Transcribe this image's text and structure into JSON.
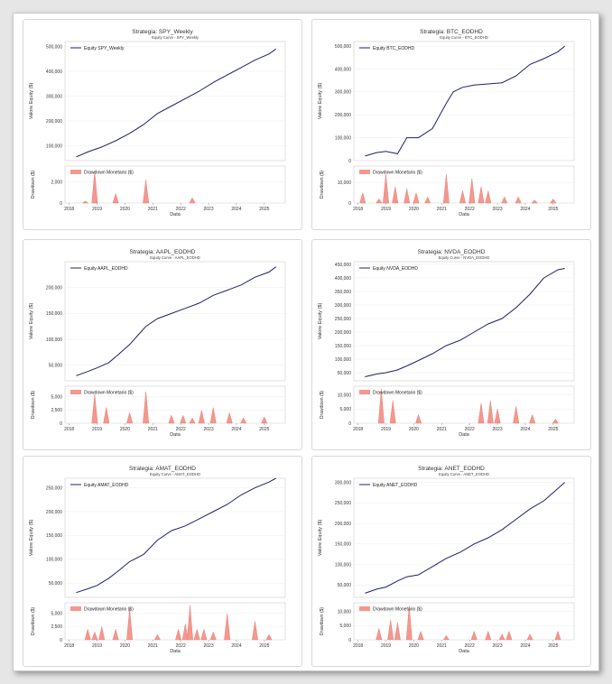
{
  "colors": {
    "equity": "#1f1f6e",
    "drawdown": "#f4978e",
    "drawdown_edge": "#e57368"
  },
  "chart_data": [
    {
      "type": "line",
      "strategy_title": "Strategia: SPY_Weekly",
      "equity_title": "Equity Curve - SPY_Weekly",
      "equity_legend": "Equity SPY_Weekly",
      "ylabel": "Valore Equity ($)",
      "ylim": [
        40000,
        520000
      ],
      "yticks": [
        100000,
        200000,
        300000,
        400000,
        500000
      ],
      "ytick_labels": [
        "100,000",
        "200,000",
        "300,000",
        "400,000",
        "500,000"
      ],
      "x_dates": [
        "2018-04",
        "2018-09",
        "2019-03",
        "2019-09",
        "2020-03",
        "2020-09",
        "2021-03",
        "2021-09",
        "2022-03",
        "2022-09",
        "2023-03",
        "2023-09",
        "2024-03",
        "2024-09",
        "2025-03",
        "2025-06"
      ],
      "equity": [
        55000,
        75000,
        95000,
        120000,
        150000,
        185000,
        230000,
        260000,
        290000,
        320000,
        355000,
        385000,
        415000,
        445000,
        470000,
        490000
      ],
      "drawdown_title": "Drawdown Monetario ($)",
      "drawdown_ylabel": "Drawdown ($)",
      "drawdown_ylim": [
        0,
        3500
      ],
      "drawdown_yticks": [
        0,
        2000
      ],
      "drawdown_ytick_labels": [
        "0",
        "2,000"
      ],
      "drawdown_events": [
        [
          "2018-08",
          200
        ],
        [
          "2018-12",
          3000
        ],
        [
          "2019-09",
          900
        ],
        [
          "2020-10",
          2200
        ],
        [
          "2022-06",
          500
        ]
      ],
      "xlabel": "Data",
      "xtick_labels": [
        "2018",
        "2019",
        "2020",
        "2021",
        "2022",
        "2023",
        "2024",
        "2025"
      ]
    },
    {
      "type": "line",
      "strategy_title": "Strategia: BTC_EODHD",
      "equity_title": "Equity Curve - BTC_EODHD",
      "equity_legend": "Equity BTC_EODHD",
      "ylabel": "Valore Equity ($)",
      "ylim": [
        0,
        520000
      ],
      "yticks": [
        0,
        100000,
        200000,
        300000,
        400000,
        500000
      ],
      "ytick_labels": [
        "0",
        "100,000",
        "200,000",
        "300,000",
        "400,000",
        "500,000"
      ],
      "x_dates": [
        "2018-04",
        "2018-09",
        "2019-01",
        "2019-06",
        "2019-10",
        "2020-03",
        "2020-09",
        "2021-03",
        "2021-06",
        "2021-10",
        "2022-03",
        "2022-09",
        "2023-03",
        "2023-09",
        "2024-03",
        "2024-09",
        "2025-03",
        "2025-06"
      ],
      "equity": [
        20000,
        35000,
        40000,
        30000,
        100000,
        100000,
        140000,
        250000,
        300000,
        320000,
        330000,
        335000,
        340000,
        370000,
        420000,
        445000,
        475000,
        500000
      ],
      "drawdown_title": "Drawdown Monetario ($)",
      "drawdown_ylabel": "Drawdown ($)",
      "drawdown_ylim": [
        0,
        18000
      ],
      "drawdown_yticks": [
        0,
        10000
      ],
      "drawdown_ytick_labels": [
        "0",
        "10,000"
      ],
      "drawdown_events": [
        [
          "2018-03",
          5000
        ],
        [
          "2018-10",
          2000
        ],
        [
          "2019-01",
          14000
        ],
        [
          "2019-05",
          8000
        ],
        [
          "2019-10",
          7000
        ],
        [
          "2020-02",
          5000
        ],
        [
          "2020-07",
          3000
        ],
        [
          "2021-03",
          14000
        ],
        [
          "2021-10",
          6000
        ],
        [
          "2022-02",
          12000
        ],
        [
          "2022-06",
          8000
        ],
        [
          "2022-09",
          6000
        ],
        [
          "2023-04",
          3000
        ],
        [
          "2023-10",
          3000
        ],
        [
          "2024-05",
          1500
        ],
        [
          "2025-01",
          2000
        ]
      ],
      "xlabel": "Data",
      "xtick_labels": [
        "2018",
        "2019",
        "2020",
        "2021",
        "2022",
        "2023",
        "2024",
        "2025"
      ]
    },
    {
      "type": "line",
      "strategy_title": "Strategia: AAPL_EODHD",
      "equity_title": "Equity Curve - AAPL_EODHD",
      "equity_legend": "Equity AAPL_EODHD",
      "ylabel": "Valore Equity ($)",
      "ylim": [
        20000,
        250000
      ],
      "yticks": [
        50000,
        100000,
        150000,
        200000
      ],
      "ytick_labels": [
        "50,000",
        "100,000",
        "150,000",
        "200,000"
      ],
      "x_dates": [
        "2018-04",
        "2018-09",
        "2019-01",
        "2019-06",
        "2019-10",
        "2020-03",
        "2020-08",
        "2020-10",
        "2021-03",
        "2021-09",
        "2022-03",
        "2022-09",
        "2023-03",
        "2023-09",
        "2024-03",
        "2024-09",
        "2025-03",
        "2025-06"
      ],
      "equity": [
        30000,
        38000,
        45000,
        55000,
        70000,
        90000,
        115000,
        125000,
        140000,
        150000,
        160000,
        170000,
        185000,
        195000,
        205000,
        220000,
        230000,
        240000
      ],
      "drawdown_title": "Drawdown Monetario ($)",
      "drawdown_ylabel": "Drawdown ($)",
      "drawdown_ylim": [
        0,
        7000
      ],
      "drawdown_yticks": [
        0,
        2500,
        5000
      ],
      "drawdown_ytick_labels": [
        "0",
        "2,500",
        "5,000"
      ],
      "drawdown_events": [
        [
          "2018-12",
          5500
        ],
        [
          "2019-05",
          3000
        ],
        [
          "2020-03",
          2000
        ],
        [
          "2020-10",
          6000
        ],
        [
          "2021-09",
          1500
        ],
        [
          "2022-02",
          1500
        ],
        [
          "2022-06",
          1000
        ],
        [
          "2022-10",
          2500
        ],
        [
          "2023-03",
          3000
        ],
        [
          "2023-10",
          2000
        ],
        [
          "2024-04",
          1000
        ],
        [
          "2025-01",
          1200
        ]
      ],
      "xlabel": "Data",
      "xtick_labels": [
        "2018",
        "2019",
        "2020",
        "2021",
        "2022",
        "2023",
        "2024",
        "2025"
      ]
    },
    {
      "type": "line",
      "strategy_title": "Strategia: NVDA_EODHD",
      "equity_title": "Equity Curve - NVDA_EODHD",
      "equity_legend": "Equity NVDA_EODHD",
      "ylabel": "Valore Equity ($)",
      "ylim": [
        20000,
        460000
      ],
      "yticks": [
        50000,
        100000,
        150000,
        200000,
        250000,
        300000,
        350000,
        400000,
        450000
      ],
      "ytick_labels": [
        "50,000",
        "100,000",
        "150,000",
        "200,000",
        "250,000",
        "300,000",
        "350,000",
        "400,000",
        "450,000"
      ],
      "x_dates": [
        "2018-04",
        "2018-09",
        "2019-01",
        "2019-06",
        "2019-10",
        "2020-03",
        "2020-09",
        "2021-03",
        "2021-09",
        "2022-03",
        "2022-09",
        "2023-03",
        "2023-09",
        "2024-03",
        "2024-09",
        "2025-03",
        "2025-06"
      ],
      "equity": [
        35000,
        45000,
        50000,
        60000,
        75000,
        95000,
        120000,
        150000,
        170000,
        200000,
        230000,
        250000,
        290000,
        340000,
        400000,
        430000,
        435000
      ],
      "drawdown_title": "Drawdown Monetario ($)",
      "drawdown_ylabel": "Drawdown ($)",
      "drawdown_ylim": [
        0,
        13000
      ],
      "drawdown_yticks": [
        0,
        5000,
        10000
      ],
      "drawdown_ytick_labels": [
        "0",
        "5,000",
        "10,000"
      ],
      "drawdown_events": [
        [
          "2018-11",
          12000
        ],
        [
          "2019-04",
          8000
        ],
        [
          "2020-03",
          3000
        ],
        [
          "2022-06",
          7000
        ],
        [
          "2022-10",
          8000
        ],
        [
          "2023-01",
          5000
        ],
        [
          "2023-09",
          6000
        ],
        [
          "2024-04",
          3000
        ],
        [
          "2025-02",
          1500
        ]
      ],
      "xlabel": "Data",
      "xtick_labels": [
        "2018",
        "2019",
        "2020",
        "2021",
        "2022",
        "2023",
        "2024",
        "2025"
      ]
    },
    {
      "type": "line",
      "strategy_title": "Strategia: AMAT_EODHD",
      "equity_title": "Equity Curve - AMAT_EODHD",
      "equity_legend": "Equity AMAT_EODHD",
      "ylabel": "Valore Equity ($)",
      "ylim": [
        20000,
        270000
      ],
      "yticks": [
        50000,
        100000,
        150000,
        200000,
        250000
      ],
      "ytick_labels": [
        "50,000",
        "100,000",
        "150,000",
        "200,000",
        "250,000"
      ],
      "x_dates": [
        "2018-04",
        "2018-09",
        "2019-01",
        "2019-06",
        "2019-10",
        "2020-03",
        "2020-09",
        "2021-03",
        "2021-09",
        "2022-03",
        "2022-09",
        "2023-03",
        "2023-09",
        "2024-03",
        "2024-09",
        "2025-03",
        "2025-06"
      ],
      "equity": [
        30000,
        38000,
        45000,
        60000,
        75000,
        95000,
        110000,
        140000,
        160000,
        170000,
        185000,
        200000,
        215000,
        235000,
        250000,
        262000,
        270000
      ],
      "drawdown_title": "Drawdown Monetario ($)",
      "drawdown_ylabel": "Drawdown ($)",
      "drawdown_ylim": [
        0,
        7000
      ],
      "drawdown_yticks": [
        0,
        2500,
        5000
      ],
      "drawdown_ytick_labels": [
        "0",
        "2,500",
        "5,000"
      ],
      "drawdown_events": [
        [
          "2018-09",
          2000
        ],
        [
          "2018-12",
          1500
        ],
        [
          "2019-03",
          2500
        ],
        [
          "2019-09",
          2000
        ],
        [
          "2020-03",
          6000
        ],
        [
          "2021-03",
          1000
        ],
        [
          "2021-12",
          2000
        ],
        [
          "2022-03",
          3000
        ],
        [
          "2022-05",
          6500
        ],
        [
          "2022-08",
          2000
        ],
        [
          "2022-11",
          2000
        ],
        [
          "2023-03",
          1500
        ],
        [
          "2023-09",
          5000
        ],
        [
          "2024-09",
          3500
        ],
        [
          "2025-03",
          1000
        ]
      ],
      "xlabel": "Data",
      "xtick_labels": [
        "2018",
        "2019",
        "2020",
        "2021",
        "2022",
        "2023",
        "2024",
        "2025"
      ]
    },
    {
      "type": "line",
      "strategy_title": "Strategia: ANET_EODHD",
      "equity_title": "Equity Curve - ANET_EODHD",
      "equity_legend": "Equity ANET_EODHD",
      "ylabel": "Valore Equity ($)",
      "ylim": [
        20000,
        310000
      ],
      "yticks": [
        50000,
        100000,
        150000,
        200000,
        250000,
        300000
      ],
      "ytick_labels": [
        "50,000",
        "100,000",
        "150,000",
        "200,000",
        "250,000",
        "300,000"
      ],
      "x_dates": [
        "2018-04",
        "2018-09",
        "2019-01",
        "2019-06",
        "2019-10",
        "2020-03",
        "2020-09",
        "2021-03",
        "2021-09",
        "2022-03",
        "2022-09",
        "2023-03",
        "2023-09",
        "2024-03",
        "2024-09",
        "2025-03",
        "2025-06"
      ],
      "equity": [
        30000,
        40000,
        45000,
        60000,
        70000,
        75000,
        95000,
        115000,
        130000,
        150000,
        165000,
        185000,
        210000,
        235000,
        255000,
        285000,
        300000
      ],
      "drawdown_title": "Drawdown Monetario ($)",
      "drawdown_ylabel": "Drawdown ($)",
      "drawdown_ylim": [
        0,
        13000
      ],
      "drawdown_yticks": [
        0,
        5000,
        10000
      ],
      "drawdown_ytick_labels": [
        "0",
        "5,000",
        "10,000"
      ],
      "drawdown_events": [
        [
          "2018-10",
          4000
        ],
        [
          "2019-03",
          7000
        ],
        [
          "2019-06",
          6000
        ],
        [
          "2019-11",
          12000
        ],
        [
          "2020-04",
          3000
        ],
        [
          "2021-03",
          1500
        ],
        [
          "2022-03",
          3000
        ],
        [
          "2022-09",
          3000
        ],
        [
          "2023-03",
          2000
        ],
        [
          "2023-06",
          3000
        ],
        [
          "2024-03",
          2000
        ],
        [
          "2025-03",
          3000
        ]
      ],
      "xlabel": "Data",
      "xtick_labels": [
        "2018",
        "2019",
        "2020",
        "2021",
        "2022",
        "2023",
        "2024",
        "2025"
      ]
    }
  ]
}
